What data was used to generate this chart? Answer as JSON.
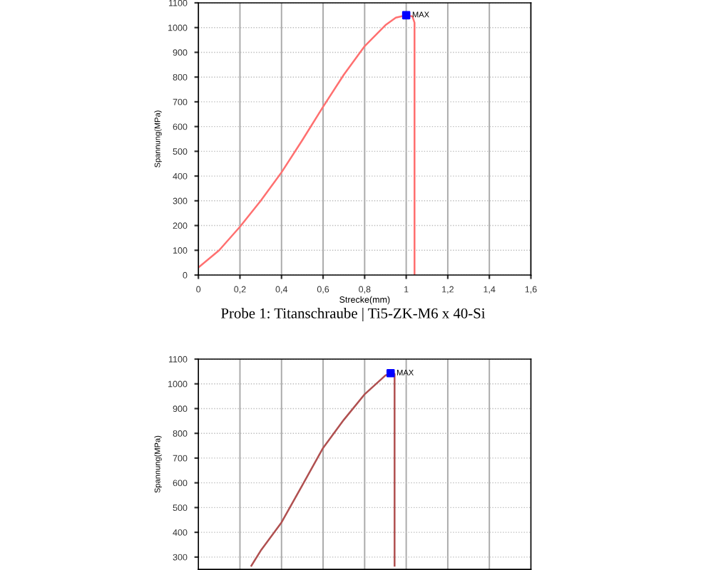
{
  "chart_data": [
    {
      "type": "line",
      "xlabel": "Strecke(mm)",
      "ylabel": "Spannung(MPa)",
      "xlim": [
        0,
        1.6
      ],
      "ylim": [
        0,
        1100
      ],
      "xticks": [
        0,
        {
          "value": 0.2,
          "label": "0,2"
        },
        {
          "value": 0.4,
          "label": "0,4"
        },
        {
          "value": 0.6,
          "label": "0,6"
        },
        {
          "value": 0.8,
          "label": "0,8"
        },
        1,
        {
          "value": 1.2,
          "label": "1,2"
        },
        {
          "value": 1.4,
          "label": "1,4"
        },
        {
          "value": 1.6,
          "label": "1,6"
        }
      ],
      "yticks": [
        0,
        100,
        200,
        300,
        400,
        500,
        600,
        700,
        800,
        900,
        1000,
        1100
      ],
      "grid": true,
      "series": [
        {
          "color": "#ff7070",
          "x": [
            0,
            0.1,
            0.2,
            0.3,
            0.4,
            0.5,
            0.6,
            0.7,
            0.8,
            0.9,
            0.95,
            1.0,
            1.03,
            1.04,
            1.04
          ],
          "values": [
            30,
            100,
            195,
            300,
            415,
            545,
            680,
            810,
            925,
            1010,
            1040,
            1050,
            1045,
            1020,
            0
          ]
        },
        {
          "type": "scatter",
          "marker": "square",
          "color": "#0000ff",
          "x": [
            1.0
          ],
          "values": [
            1050
          ]
        }
      ],
      "annotations": [
        {
          "text": "MAX",
          "x": 1.0,
          "y": 1050
        },
        "Probe 1: Titanschraube | Ti5-ZK-M6 x 40-Si"
      ]
    },
    {
      "type": "line",
      "ylabel": "Spannung(MPa)",
      "xlim": [
        0,
        1.6
      ],
      "ylim": [
        250,
        1100
      ],
      "tick_labels": "y",
      "xticks": [
        {
          "value": 0.2,
          "label": null
        },
        {
          "value": 0.4,
          "label": null
        },
        {
          "value": 0.6,
          "label": null
        },
        {
          "value": 0.8,
          "label": null
        },
        {
          "value": 1,
          "label": null
        },
        {
          "value": 1.2,
          "label": null
        },
        {
          "value": 1.4,
          "label": null
        }
      ],
      "yticks": [
        300,
        400,
        500,
        600,
        700,
        800,
        900,
        1000,
        1100
      ],
      "grid": true,
      "series": [
        {
          "color": "#b05050",
          "x": [
            0.255,
            0.3,
            0.4,
            0.5,
            0.6,
            0.7,
            0.8,
            0.9,
            0.925,
            0.944,
            0.944
          ],
          "values": [
            265,
            326,
            440,
            590,
            741,
            855,
            958,
            1034,
            1043,
            1040,
            265
          ]
        },
        {
          "type": "scatter",
          "marker": "square",
          "color": "#0000ff",
          "x": [
            0.925
          ],
          "values": [
            1043
          ]
        }
      ],
      "annotations": [
        {
          "text": "MAX",
          "x": 0.925,
          "y": 1043
        }
      ]
    }
  ]
}
